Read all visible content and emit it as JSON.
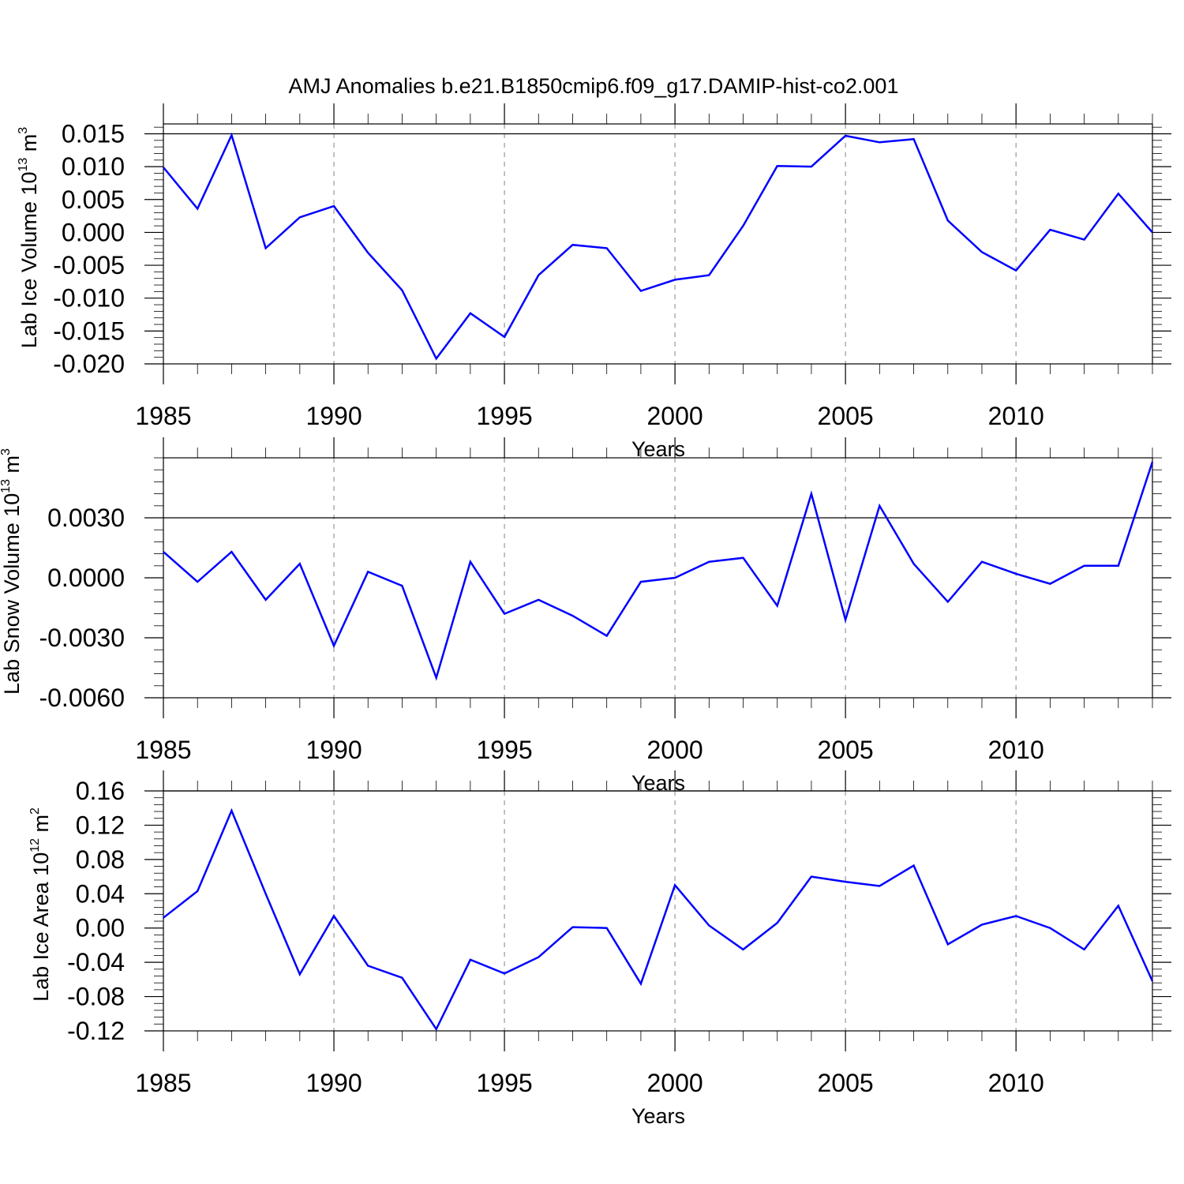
{
  "title": "AMJ Anomalies b.e21.B1850cmip6.f09_g17.DAMIP-hist-co2.001",
  "chart_data": [
    {
      "type": "line",
      "xlabel": "Years",
      "ylabel": "Lab Ice Volume 10",
      "ylabel_sup": "13",
      "ylabel_unit": " m",
      "ylabel_unit_sup": "3",
      "xlim": [
        1985,
        2014
      ],
      "ylim": [
        -0.02,
        0.0165
      ],
      "xticks": [
        1985,
        1990,
        1995,
        2000,
        2005,
        2010
      ],
      "xtick_labels": [
        "1985",
        "1990",
        "1995",
        "2000",
        "2005",
        "2010"
      ],
      "yticks": [
        -0.02,
        -0.015,
        -0.01,
        -0.005,
        0.0,
        0.005,
        0.01,
        0.015
      ],
      "ytick_labels": [
        "-0.020",
        "-0.015",
        "-0.010",
        "-0.005",
        "0.000",
        "0.005",
        "0.010",
        "0.015"
      ],
      "series_color": "#0000ff",
      "x": [
        1985,
        1986,
        1987,
        1988,
        1989,
        1990,
        1991,
        1992,
        1993,
        1994,
        1995,
        1996,
        1997,
        1998,
        1999,
        2000,
        2001,
        2002,
        2003,
        2004,
        2005,
        2006,
        2007,
        2008,
        2009,
        2010,
        2011,
        2012,
        2013,
        2014
      ],
      "values": [
        0.0099,
        0.0036,
        0.0148,
        -0.0024,
        0.0023,
        0.004,
        -0.0031,
        -0.0088,
        -0.0192,
        -0.0123,
        -0.0159,
        -0.0065,
        -0.0019,
        -0.0024,
        -0.0089,
        -0.0072,
        -0.0065,
        0.001,
        0.0101,
        0.01,
        0.0147,
        0.0137,
        0.0142,
        0.0018,
        -0.003,
        -0.0058,
        0.0004,
        -0.0011,
        0.0059,
        0.0
      ]
    },
    {
      "type": "line",
      "xlabel": "Years",
      "ylabel": "Lab Snow Volume 10",
      "ylabel_sup": "13",
      "ylabel_unit": " m",
      "ylabel_unit_sup": "3",
      "xlim": [
        1985,
        2014
      ],
      "ylim": [
        -0.006,
        0.006
      ],
      "xticks": [
        1985,
        1990,
        1995,
        2000,
        2005,
        2010
      ],
      "xtick_labels": [
        "1985",
        "1990",
        "1995",
        "2000",
        "2005",
        "2010"
      ],
      "yticks": [
        -0.006,
        -0.003,
        0.0,
        0.003
      ],
      "ytick_labels": [
        "-0.0060",
        "-0.0030",
        "0.0000",
        "0.0030"
      ],
      "series_color": "#0000ff",
      "x": [
        1985,
        1986,
        1987,
        1988,
        1989,
        1990,
        1991,
        1992,
        1993,
        1994,
        1995,
        1996,
        1997,
        1998,
        1999,
        2000,
        2001,
        2002,
        2003,
        2004,
        2005,
        2006,
        2007,
        2008,
        2009,
        2010,
        2011,
        2012,
        2013,
        2014
      ],
      "values": [
        0.0013,
        -0.0002,
        0.0013,
        -0.0011,
        0.0007,
        -0.0034,
        0.0003,
        -0.0004,
        -0.005,
        0.0008,
        -0.0018,
        -0.0011,
        -0.0019,
        -0.0029,
        -0.0002,
        0.0,
        0.0008,
        0.001,
        -0.0014,
        0.0042,
        -0.0021,
        0.0036,
        0.0007,
        -0.0012,
        0.0008,
        0.0002,
        -0.0003,
        0.0006,
        0.0006,
        0.0058
      ]
    },
    {
      "type": "line",
      "xlabel": "Years",
      "ylabel": "Lab Ice Area 10",
      "ylabel_sup": "12",
      "ylabel_unit": " m",
      "ylabel_unit_sup": "2",
      "xlim": [
        1985,
        2014
      ],
      "ylim": [
        -0.12,
        0.16
      ],
      "xticks": [
        1985,
        1990,
        1995,
        2000,
        2005,
        2010
      ],
      "xtick_labels": [
        "1985",
        "1990",
        "1995",
        "2000",
        "2005",
        "2010"
      ],
      "yticks": [
        -0.12,
        -0.08,
        -0.04,
        0.0,
        0.04,
        0.08,
        0.12,
        0.16
      ],
      "ytick_labels": [
        "-0.12",
        "-0.08",
        "-0.04",
        "0.00",
        "0.04",
        "0.08",
        "0.12",
        "0.16"
      ],
      "series_color": "#0000ff",
      "x": [
        1985,
        1986,
        1987,
        1988,
        1989,
        1990,
        1991,
        1992,
        1993,
        1994,
        1995,
        1996,
        1997,
        1998,
        1999,
        2000,
        2001,
        2002,
        2003,
        2004,
        2005,
        2006,
        2007,
        2008,
        2009,
        2010,
        2011,
        2012,
        2013,
        2014
      ],
      "values": [
        0.012,
        0.043,
        0.137,
        0.04,
        -0.054,
        0.014,
        -0.044,
        -0.058,
        -0.118,
        -0.037,
        -0.053,
        -0.034,
        0.001,
        0.0,
        -0.065,
        0.05,
        0.003,
        -0.025,
        0.006,
        0.06,
        0.054,
        0.049,
        0.073,
        -0.019,
        0.004,
        0.014,
        0.0,
        -0.025,
        0.026,
        -0.062
      ]
    }
  ]
}
